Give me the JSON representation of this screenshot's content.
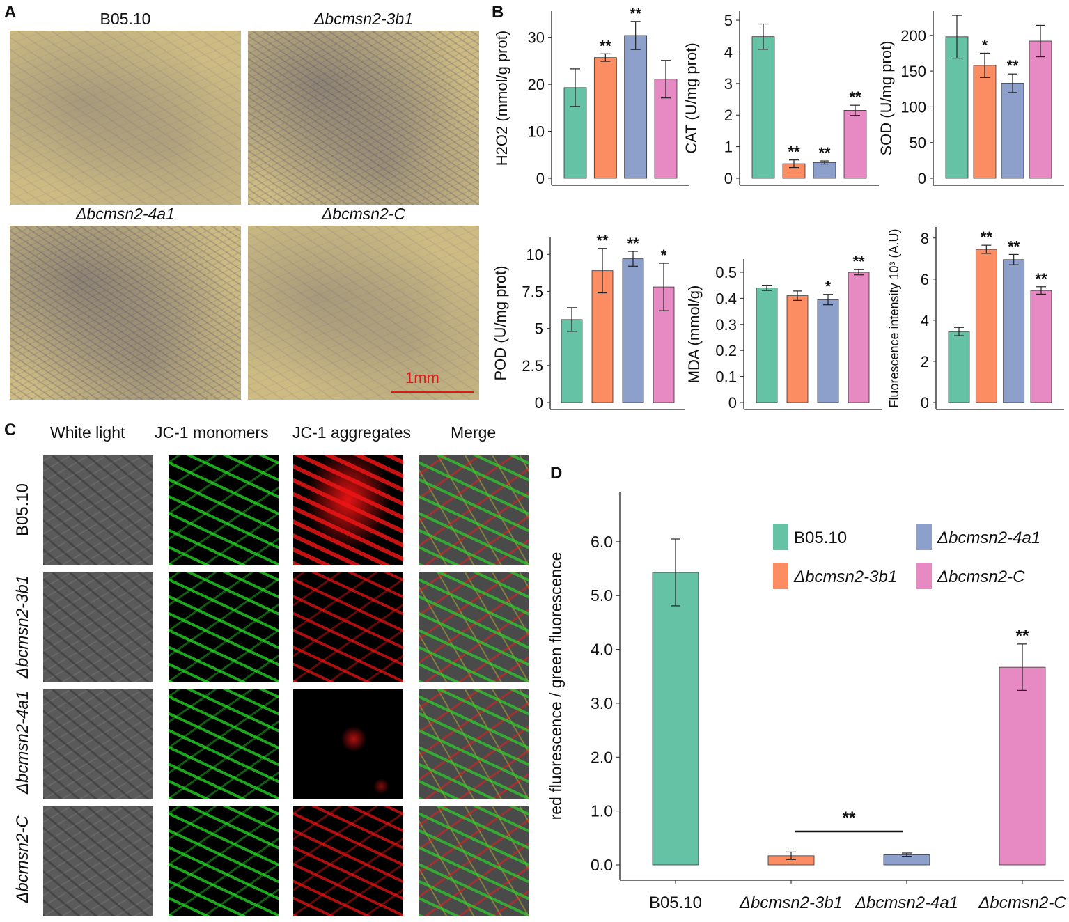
{
  "panels": {
    "a": "A",
    "b": "B",
    "c": "C",
    "d": "D"
  },
  "panel_a": {
    "images": [
      "B05.10",
      "Δbcmsn2-3b1",
      "Δbcmsn2-4a1",
      "Δbcmsn2-C"
    ],
    "scale_bar": "1mm"
  },
  "panel_c": {
    "columns": [
      "White light",
      "JC-1 monomers",
      "JC-1 aggregates",
      "Merge"
    ],
    "rows": [
      "B05.10",
      "Δbcmsn2-3b1",
      "Δbcmsn2-4a1",
      "Δbcmsn2-C"
    ]
  },
  "colors": {
    "B05.10": "#66c2a5",
    "Δbcmsn2-3b1": "#fc8d62",
    "Δbcmsn2-4a1": "#8da0cb",
    "Δbcmsn2-C": "#e78ac3"
  },
  "chart_data": [
    {
      "type": "bar",
      "ylabel": "H2O2 (mmol/g prot)",
      "ylim": [
        0,
        35
      ],
      "yticks": [
        0,
        10,
        20,
        30
      ],
      "categories": [
        "B05.10",
        "Δbcmsn2-3b1",
        "Δbcmsn2-4a1",
        "Δbcmsn2-C"
      ],
      "values": [
        19.3,
        25.7,
        30.4,
        21.1
      ],
      "errors": [
        4.0,
        0.8,
        3.0,
        4.0
      ],
      "significance": [
        "",
        "**",
        "**",
        ""
      ]
    },
    {
      "type": "bar",
      "ylabel": "CAT (U/mg prot)",
      "ylim": [
        0,
        5.2
      ],
      "yticks": [
        0,
        1,
        2,
        3,
        4,
        5
      ],
      "categories": [
        "B05.10",
        "Δbcmsn2-3b1",
        "Δbcmsn2-4a1",
        "Δbcmsn2-C"
      ],
      "values": [
        4.48,
        0.46,
        0.5,
        2.15
      ],
      "errors": [
        0.4,
        0.12,
        0.05,
        0.16
      ],
      "significance": [
        "",
        "**",
        "**",
        "**"
      ]
    },
    {
      "type": "bar",
      "ylabel": "SOD (U/mg prot)",
      "ylim": [
        0,
        230
      ],
      "yticks": [
        0,
        50,
        100,
        150,
        200
      ],
      "categories": [
        "B05.10",
        "Δbcmsn2-3b1",
        "Δbcmsn2-4a1",
        "Δbcmsn2-C"
      ],
      "values": [
        198,
        158,
        133,
        192
      ],
      "errors": [
        30,
        17,
        13,
        22
      ],
      "significance": [
        "",
        "*",
        "**",
        ""
      ]
    },
    {
      "type": "bar",
      "ylabel": "POD (U/mg prot)",
      "ylim": [
        0,
        11
      ],
      "yticks": [
        0.0,
        2.5,
        5.0,
        7.5,
        10.0
      ],
      "categories": [
        "B05.10",
        "Δbcmsn2-3b1",
        "Δbcmsn2-4a1",
        "Δbcmsn2-C"
      ],
      "values": [
        5.6,
        8.9,
        9.7,
        7.8
      ],
      "errors": [
        0.8,
        1.5,
        0.5,
        1.6
      ],
      "significance": [
        "",
        "**",
        "**",
        "*"
      ]
    },
    {
      "type": "bar",
      "ylabel": "MDA (mmol/g)",
      "ylim": [
        0,
        0.54
      ],
      "yticks": [
        0.0,
        0.1,
        0.2,
        0.3,
        0.4,
        0.5
      ],
      "categories": [
        "B05.10",
        "Δbcmsn2-3b1",
        "Δbcmsn2-4a1",
        "Δbcmsn2-C"
      ],
      "values": [
        0.44,
        0.41,
        0.395,
        0.5
      ],
      "errors": [
        0.01,
        0.018,
        0.02,
        0.01
      ],
      "significance": [
        "",
        "",
        "*",
        "**"
      ]
    },
    {
      "type": "bar",
      "ylabel": "Fluorescence intensity 10³ (A.U)",
      "ylim": [
        0,
        8.4
      ],
      "yticks": [
        0,
        2,
        4,
        6,
        8
      ],
      "categories": [
        "B05.10",
        "Δbcmsn2-3b1",
        "Δbcmsn2-4a1",
        "Δbcmsn2-C"
      ],
      "values": [
        3.45,
        7.45,
        6.95,
        5.45
      ],
      "errors": [
        0.2,
        0.2,
        0.25,
        0.18
      ],
      "significance": [
        "",
        "**",
        "**",
        "**"
      ]
    },
    {
      "type": "bar",
      "ylabel": "red fluorescence / green fluorescence",
      "ylim": [
        0,
        6.8
      ],
      "yticks": [
        "0.0",
        "1.0",
        "2.0",
        "3.0",
        "4.0",
        "5.0",
        "6.0"
      ],
      "categories": [
        "B05.10",
        "Δbcmsn2-3b1",
        "Δbcmsn2-4a1",
        "Δbcmsn2-C"
      ],
      "values": [
        5.43,
        0.17,
        0.19,
        3.67
      ],
      "errors": [
        0.62,
        0.07,
        0.03,
        0.43
      ],
      "significance": [
        "",
        "",
        "",
        "**"
      ],
      "bracket": {
        "from": "Δbcmsn2-3b1",
        "to": "Δbcmsn2-4a1",
        "label": "**"
      },
      "legend": [
        "B05.10",
        "Δbcmsn2-4a1",
        "Δbcmsn2-3b1",
        "Δbcmsn2-C"
      ]
    }
  ]
}
